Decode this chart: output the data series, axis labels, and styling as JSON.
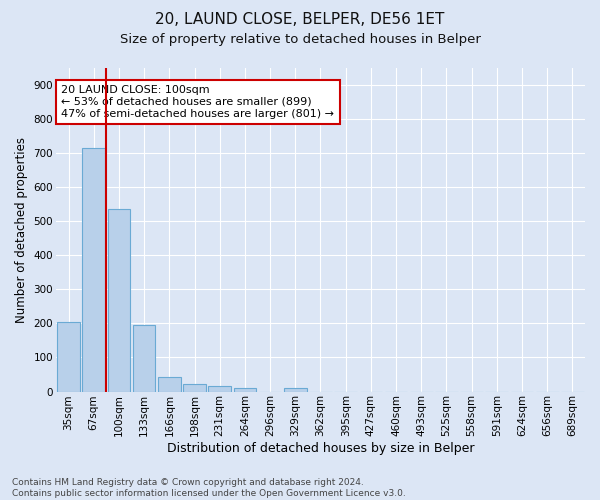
{
  "title": "20, LAUND CLOSE, BELPER, DE56 1ET",
  "subtitle": "Size of property relative to detached houses in Belper",
  "xlabel": "Distribution of detached houses by size in Belper",
  "ylabel": "Number of detached properties",
  "categories": [
    "35sqm",
    "67sqm",
    "100sqm",
    "133sqm",
    "166sqm",
    "198sqm",
    "231sqm",
    "264sqm",
    "296sqm",
    "329sqm",
    "362sqm",
    "395sqm",
    "427sqm",
    "460sqm",
    "493sqm",
    "525sqm",
    "558sqm",
    "591sqm",
    "624sqm",
    "656sqm",
    "689sqm"
  ],
  "values": [
    203,
    714,
    535,
    195,
    44,
    21,
    15,
    11,
    0,
    9,
    0,
    0,
    0,
    0,
    0,
    0,
    0,
    0,
    0,
    0,
    0
  ],
  "bar_color": "#b8d0ea",
  "bar_edge_color": "#6aaad4",
  "highlight_line_color": "#cc0000",
  "annotation_text": "20 LAUND CLOSE: 100sqm\n← 53% of detached houses are smaller (899)\n47% of semi-detached houses are larger (801) →",
  "annotation_box_color": "#ffffff",
  "annotation_box_edge_color": "#cc0000",
  "ylim": [
    0,
    950
  ],
  "yticks": [
    0,
    100,
    200,
    300,
    400,
    500,
    600,
    700,
    800,
    900
  ],
  "bg_color": "#dce6f5",
  "grid_color": "#ffffff",
  "footer_text": "Contains HM Land Registry data © Crown copyright and database right 2024.\nContains public sector information licensed under the Open Government Licence v3.0.",
  "title_fontsize": 11,
  "subtitle_fontsize": 9.5,
  "xlabel_fontsize": 9,
  "ylabel_fontsize": 8.5,
  "tick_fontsize": 7.5,
  "annotation_fontsize": 8,
  "footer_fontsize": 6.5
}
